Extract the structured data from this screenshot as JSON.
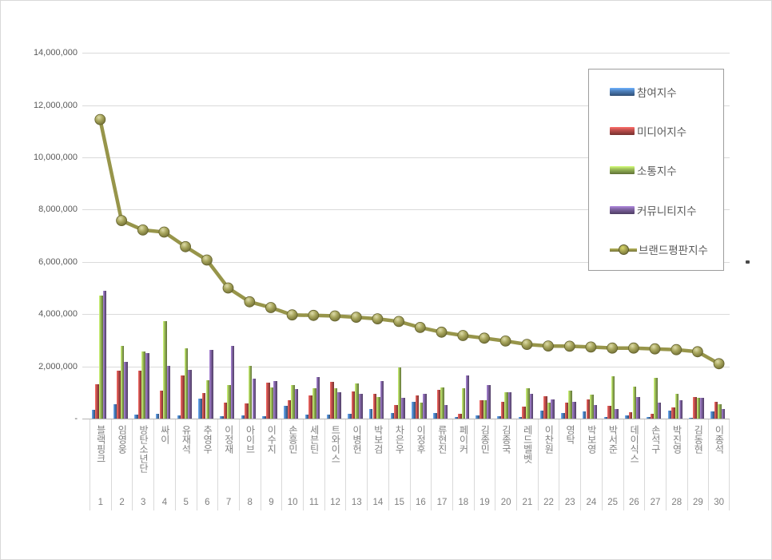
{
  "chart_data": {
    "type": "bar",
    "subtype": "grouped-bars-with-line-overlay",
    "title": "",
    "xlabel": "",
    "ylabel": "",
    "grid": true,
    "legend_position": "right-top",
    "y_axis": {
      "min": 0,
      "max": 14000000,
      "step": 2000000,
      "tick_labels": [
        "-",
        "2,000,000",
        "4,000,000",
        "6,000,000",
        "8,000,000",
        "10,000,000",
        "12,000,000",
        "14,000,000"
      ]
    },
    "categories": [
      "블랙핑크",
      "임영웅",
      "방탄소년단",
      "싸이",
      "유재석",
      "추영우",
      "이정재",
      "아이브",
      "이수지",
      "손흥민",
      "세븐틴",
      "트와이스",
      "이병헌",
      "박보검",
      "차은우",
      "이정후",
      "류현진",
      "페이커",
      "김종민",
      "김종국",
      "레드벨벳",
      "이찬원",
      "영탁",
      "박보영",
      "박서준",
      "데이식스",
      "손석구",
      "박진영",
      "김동현",
      "이종석"
    ],
    "ranks": [
      1,
      2,
      3,
      4,
      5,
      6,
      7,
      8,
      9,
      10,
      11,
      12,
      13,
      14,
      15,
      16,
      17,
      18,
      19,
      20,
      21,
      22,
      23,
      24,
      25,
      26,
      27,
      28,
      29,
      30
    ],
    "series": [
      {
        "name": "참여지수",
        "key": "participation",
        "type": "bar",
        "color": "#4F81BD",
        "values": [
          350000,
          560000,
          150000,
          170000,
          130000,
          770000,
          100000,
          130000,
          80000,
          480000,
          150000,
          140000,
          170000,
          380000,
          210000,
          650000,
          210000,
          70000,
          130000,
          100000,
          50000,
          310000,
          210000,
          280000,
          70000,
          130000,
          50000,
          310000,
          30000,
          280000
        ]
      },
      {
        "name": "미디어지수",
        "key": "media",
        "type": "bar",
        "color": "#C0504D",
        "values": [
          1330000,
          1850000,
          1830000,
          1060000,
          1640000,
          990000,
          620000,
          580000,
          1380000,
          720000,
          900000,
          1420000,
          1050000,
          950000,
          510000,
          890000,
          1100000,
          170000,
          690000,
          650000,
          460000,
          870000,
          620000,
          750000,
          480000,
          240000,
          170000,
          440000,
          820000,
          650000
        ]
      },
      {
        "name": "소통지수",
        "key": "communication",
        "type": "bar",
        "color": "#9BBB59",
        "values": [
          4700000,
          2770000,
          2560000,
          3740000,
          2700000,
          1470000,
          1300000,
          2030000,
          1180000,
          1280000,
          1150000,
          1150000,
          1360000,
          820000,
          1950000,
          620000,
          1200000,
          1160000,
          720000,
          1000000,
          1150000,
          620000,
          1060000,
          920000,
          1610000,
          1210000,
          1570000,
          950000,
          790000,
          540000
        ]
      },
      {
        "name": "커뮤니티지수",
        "key": "community",
        "type": "bar",
        "color": "#8064A2",
        "values": [
          4900000,
          2180000,
          2510000,
          2020000,
          1870000,
          2640000,
          2790000,
          1540000,
          1440000,
          1130000,
          1590000,
          1000000,
          950000,
          1430000,
          790000,
          950000,
          510000,
          1640000,
          1280000,
          1000000,
          950000,
          750000,
          650000,
          510000,
          360000,
          820000,
          620000,
          720000,
          790000,
          360000
        ]
      },
      {
        "name": "브랜드평판지수",
        "key": "brand-reputation",
        "type": "line",
        "color": "#97954A",
        "values": [
          11450000,
          7580000,
          7220000,
          7140000,
          6580000,
          6070000,
          5000000,
          4470000,
          4250000,
          3970000,
          3950000,
          3930000,
          3880000,
          3820000,
          3720000,
          3490000,
          3310000,
          3180000,
          3080000,
          2970000,
          2840000,
          2780000,
          2770000,
          2740000,
          2700000,
          2700000,
          2670000,
          2640000,
          2560000,
          2100000
        ]
      }
    ]
  }
}
